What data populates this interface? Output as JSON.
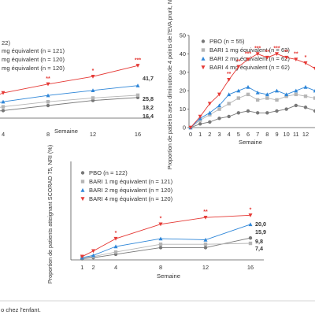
{
  "colors": {
    "pbo": "#777777",
    "bari1": "#b5b5b5",
    "bari2": "#2e86d8",
    "bari4": "#e53935",
    "axis": "#555555"
  },
  "chart_data": [
    {
      "type": "line",
      "id": "A",
      "xlabel": "Semaine",
      "ylabel": "",
      "x": [
        0,
        4,
        8,
        12,
        16
      ],
      "xticks_labels": [
        "4",
        "8",
        "12",
        "16"
      ],
      "xlim": [
        4,
        16
      ],
      "ylim": [
        0,
        50
      ],
      "legend": [
        "22)",
        "mg équivalent (n = 121)",
        "mg équivalent (n = 120)",
        "mg équivalent (n = 120)"
      ],
      "series": [
        {
          "key": "pbo",
          "values": [
            2,
            6,
            10,
            14,
            16.4
          ]
        },
        {
          "key": "bari1",
          "values": [
            3,
            9,
            13,
            16,
            18.2
          ]
        },
        {
          "key": "bari2",
          "values": [
            4,
            13,
            18,
            22,
            25.8
          ]
        },
        {
          "key": "bari4",
          "values": [
            6,
            20,
            27,
            33,
            41.7
          ]
        }
      ],
      "end_labels": [
        {
          "key": "bari4",
          "text": "41,7"
        },
        {
          "key": "bari2",
          "text": "25,8"
        },
        {
          "key": "bari1",
          "text": "18,2"
        },
        {
          "key": "pbo",
          "text": "16,4"
        }
      ],
      "stars": [
        {
          "x": 0,
          "text": "***"
        },
        {
          "x": 8,
          "text": "**"
        },
        {
          "x": 12,
          "text": "*"
        },
        {
          "x": 16,
          "text": "***"
        }
      ]
    },
    {
      "type": "line",
      "id": "B",
      "xlabel": "Semaine",
      "ylabel": "Proportion de patients avec diminution de 4 points de l'EVA prurit, NRI",
      "x": [
        0,
        1,
        2,
        3,
        4,
        5,
        6,
        7,
        8,
        9,
        10,
        11,
        12,
        13
      ],
      "xticks": [
        0,
        1,
        2,
        3,
        4,
        5,
        6,
        7,
        8,
        9,
        10,
        11,
        12
      ],
      "xlim": [
        0,
        13
      ],
      "ylim": [
        0,
        50
      ],
      "yticks": [
        0,
        10,
        20,
        30,
        40,
        50
      ],
      "legend": [
        "PBO (n = 55)",
        "BARI 1 mg équivalent (n = 63)",
        "BARI 2 mg équivalent (n = 62)",
        "BARI 4 mg équivalent (n = 62)"
      ],
      "series": [
        {
          "key": "pbo",
          "values": [
            0,
            2,
            3,
            5,
            6,
            8,
            9,
            8,
            8,
            9,
            10,
            12,
            11,
            9
          ]
        },
        {
          "key": "bari1",
          "values": [
            0,
            4,
            7,
            10,
            13,
            16,
            18,
            15,
            16,
            15,
            17,
            18,
            17,
            16
          ]
        },
        {
          "key": "bari2",
          "values": [
            0,
            5,
            8,
            12,
            18,
            20,
            22,
            19,
            18,
            20,
            18,
            20,
            22,
            20
          ]
        },
        {
          "key": "bari4",
          "values": [
            0,
            6,
            13,
            18,
            26,
            33,
            37,
            40,
            38,
            40,
            38,
            37,
            35,
            32
          ]
        }
      ],
      "stars": [
        {
          "x": 4,
          "text": "**"
        },
        {
          "x": 5,
          "text": "**"
        },
        {
          "x": 6,
          "text": "***"
        },
        {
          "x": 7,
          "text": "***"
        },
        {
          "x": 8,
          "text": "**"
        },
        {
          "x": 9,
          "text": "***"
        },
        {
          "x": 10,
          "text": "**"
        },
        {
          "x": 11,
          "text": "**"
        },
        {
          "x": 12,
          "text": "*"
        }
      ]
    },
    {
      "type": "line",
      "id": "C",
      "xlabel": "Semaine",
      "ylabel": "Proportion de patients atteignant SCORAD 75, NRI (%)",
      "x": [
        1,
        2,
        4,
        8,
        12,
        16
      ],
      "xticks": [
        1,
        2,
        4,
        8,
        12,
        16
      ],
      "xlim": [
        0,
        16
      ],
      "ylim": [
        0,
        30
      ],
      "legend": [
        "PBO (n = 122)",
        "BARI 1 mg équivalent (n = 121)",
        "BARI 2 mg équivalent (n = 120)",
        "BARI 4 mg équivalent (n = 120)"
      ],
      "series": [
        {
          "key": "pbo",
          "values": [
            0.5,
            1,
            2.5,
            5.5,
            5.5,
            9.8
          ]
        },
        {
          "key": "bari1",
          "values": [
            1,
            1.5,
            3.5,
            7,
            7,
            7.4
          ]
        },
        {
          "key": "bari2",
          "values": [
            1,
            2,
            6,
            9.5,
            9,
            15.9
          ]
        },
        {
          "key": "bari4",
          "values": [
            1.5,
            4,
            9.5,
            16,
            19,
            20.0
          ]
        }
      ],
      "end_labels": [
        {
          "key": "bari4",
          "text": "20,0"
        },
        {
          "key": "bari2",
          "text": "15,9"
        },
        {
          "key": "pbo",
          "text": "9,8"
        },
        {
          "key": "bari1",
          "text": "7,4"
        }
      ],
      "stars": [
        {
          "x": 4,
          "text": "*"
        },
        {
          "x": 8,
          "text": "*"
        },
        {
          "x": 12,
          "text": "**"
        },
        {
          "x": 16,
          "text": "*"
        }
      ]
    }
  ],
  "footer": "o chez l'enfant."
}
